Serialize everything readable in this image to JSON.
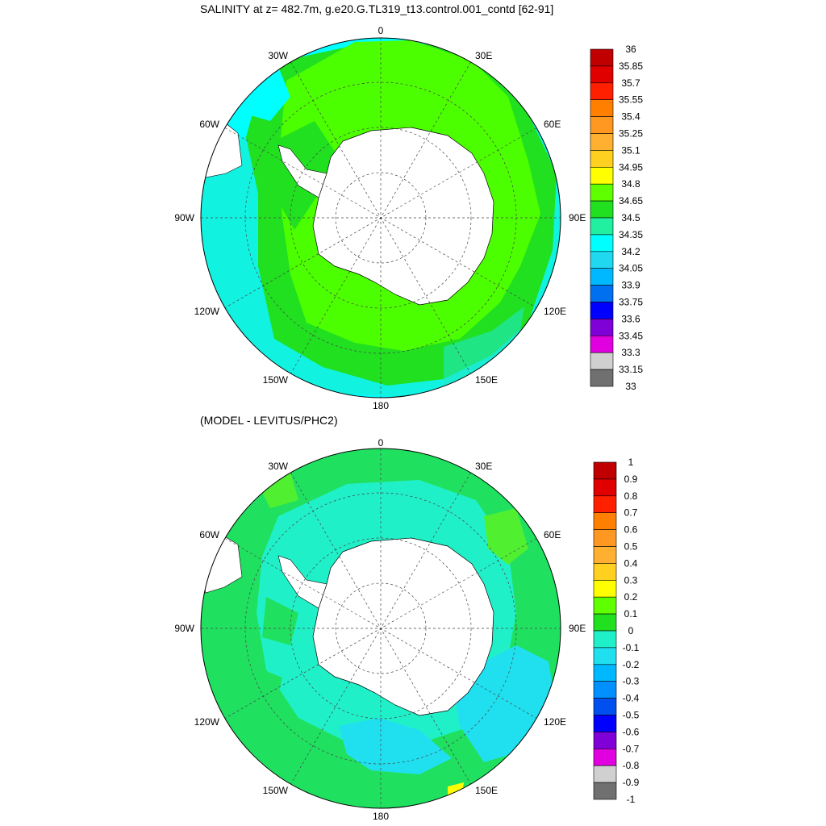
{
  "panels": [
    {
      "title": "SALINITY at z= 482.7m, g.e20.G.TL319_t13.control.001_contd [62-91]",
      "lon_labels": [
        "0",
        "30E",
        "60E",
        "90E",
        "120E",
        "150E",
        "180",
        "150W",
        "120W",
        "90W",
        "60W",
        "30W"
      ],
      "colorbar": {
        "labels": [
          "36",
          "35.85",
          "35.7",
          "35.55",
          "35.4",
          "35.25",
          "35.1",
          "34.95",
          "34.8",
          "34.65",
          "34.5",
          "34.35",
          "34.2",
          "34.05",
          "33.9",
          "33.75",
          "33.6",
          "33.45",
          "33.3",
          "33.15",
          "33"
        ],
        "colors": [
          "#c00000",
          "#e00000",
          "#ff2000",
          "#ff8000",
          "#ff9820",
          "#ffb030",
          "#ffd020",
          "#ffff00",
          "#60ff00",
          "#20e020",
          "#20f0a0",
          "#00ffff",
          "#20d8f0",
          "#00b8ff",
          "#0070f0",
          "#0000ff",
          "#8000d8",
          "#e000e0",
          "#d0d0d0",
          "#707070"
        ]
      }
    },
    {
      "title": "(MODEL - LEVITUS/PHC2)",
      "lon_labels": [
        "0",
        "30E",
        "60E",
        "90E",
        "120E",
        "150E",
        "180",
        "150W",
        "120W",
        "90W",
        "60W",
        "30W"
      ],
      "colorbar": {
        "labels": [
          "1",
          "0.9",
          "0.8",
          "0.7",
          "0.6",
          "0.5",
          "0.4",
          "0.3",
          "0.2",
          "0.1",
          "0",
          "-0.1",
          "-0.2",
          "-0.3",
          "-0.4",
          "-0.5",
          "-0.6",
          "-0.7",
          "-0.8",
          "-0.9",
          "-1"
        ],
        "colors": [
          "#c00000",
          "#e00000",
          "#ff2000",
          "#ff8000",
          "#ff9820",
          "#ffb030",
          "#ffd020",
          "#ffff00",
          "#60ff00",
          "#20e020",
          "#20f0c8",
          "#20e0f0",
          "#00b8ff",
          "#0090ff",
          "#0050f0",
          "#0000ff",
          "#8000d8",
          "#e000e0",
          "#d0d0d0",
          "#707070"
        ]
      }
    }
  ]
}
